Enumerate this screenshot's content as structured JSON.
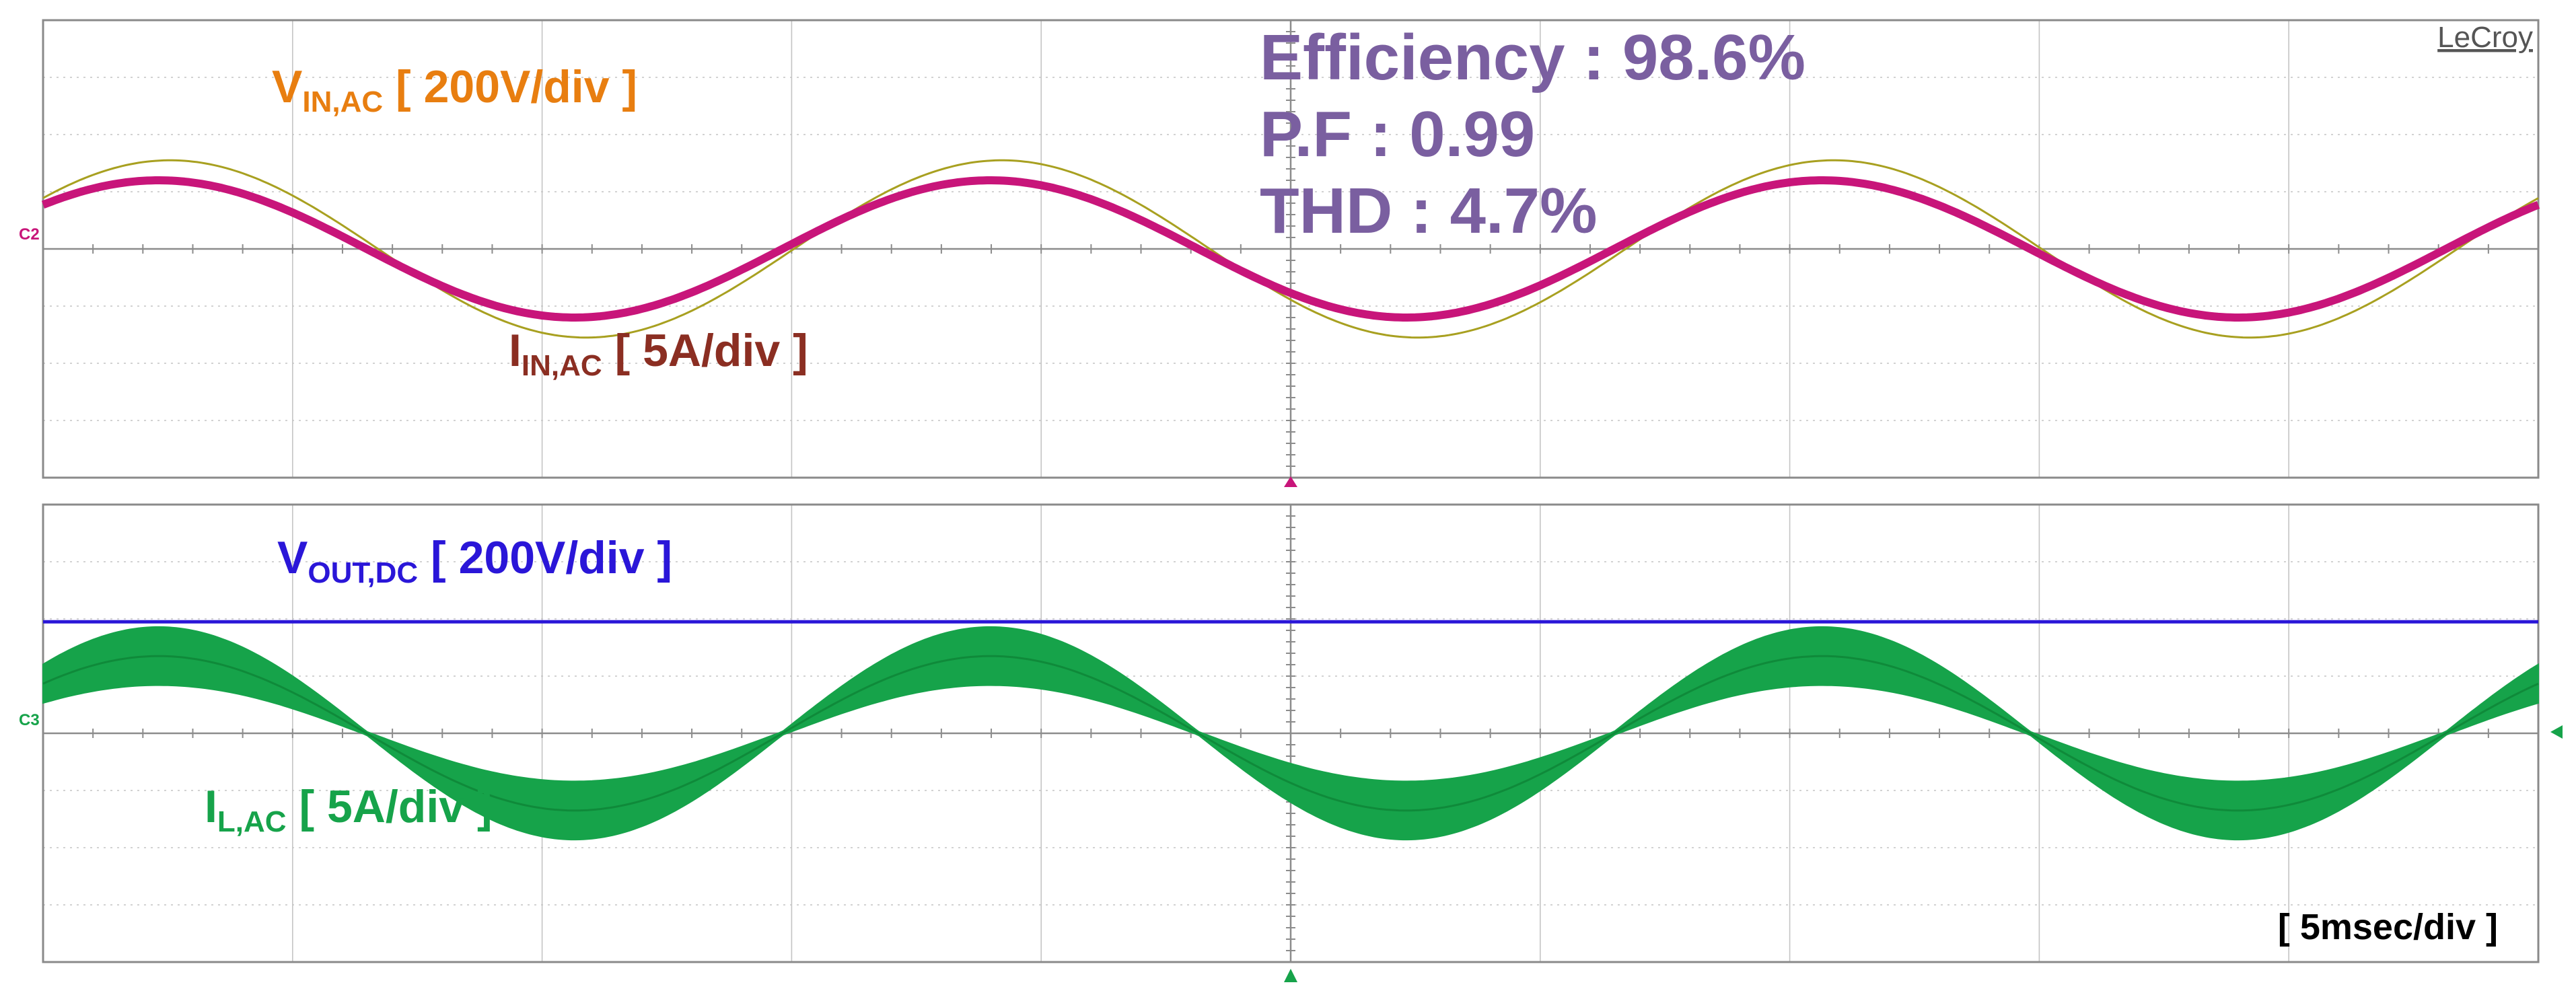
{
  "brand": "LeCroy",
  "colors": {
    "v_in": "#E87E10",
    "i_in": "#8B2E22",
    "i_in_trace": "#C8157A",
    "v_in_trace": "#A8A020",
    "v_out": "#2A16D8",
    "i_l": "#16A34A",
    "metrics": "#7A5FA0",
    "grid": "#9a9a9a",
    "grid_minor": "#c4c4c4",
    "border": "#8a8a8a",
    "marker_c2": "#C8157A",
    "marker_c3": "#16A34A"
  },
  "metrics": {
    "efficiency": "Efficiency : 98.6%",
    "pf": "P.F : 0.99",
    "thd": "THD : 4.7%"
  },
  "channel_markers": {
    "top": "C2",
    "bottom": "C3"
  },
  "labels": {
    "v_in_main": "V",
    "v_in_sub": "IN,AC",
    "v_in_scale": " [ 200V/div ]",
    "i_in_main": "I",
    "i_in_sub": "IN,AC",
    "i_in_scale": " [ 5A/div ]",
    "v_out_main": "V",
    "v_out_sub": "OUT,DC",
    "v_out_scale": " [ 200V/div ]",
    "i_l_main": "I",
    "i_l_sub": "L,AC",
    "i_l_scale": " [ 5A/div ]",
    "timebase": "[ 5msec/div ]"
  },
  "chart_data": [
    {
      "type": "line",
      "panel": "top",
      "x_unit": "ms",
      "xlim": [
        0,
        50
      ],
      "y_unit": "div",
      "ylim": [
        -4,
        4
      ],
      "grid": true,
      "series": [
        {
          "name": "V_IN,AC",
          "scale": "200V/div",
          "waveform": "sine",
          "frequency_hz": 60,
          "amplitude_div": 1.55,
          "offset_div": 0,
          "phase_deg": 35
        },
        {
          "name": "I_IN,AC",
          "scale": "5A/div",
          "waveform": "sine",
          "frequency_hz": 60,
          "amplitude_div": 1.2,
          "offset_div": 0,
          "phase_deg": 40
        }
      ]
    },
    {
      "type": "line",
      "panel": "bottom",
      "x_unit": "ms",
      "xlim": [
        0,
        50
      ],
      "y_unit": "div",
      "ylim": [
        -4,
        4
      ],
      "grid": true,
      "series": [
        {
          "name": "V_OUT,DC",
          "scale": "200V/div",
          "waveform": "dc",
          "level_div": 1.95
        },
        {
          "name": "I_L,AC",
          "scale": "5A/div",
          "waveform": "sine_with_ripple",
          "frequency_hz": 60,
          "amplitude_div": 1.35,
          "offset_div": 0,
          "phase_deg": 40,
          "ripple_div_peak": 0.48
        }
      ]
    }
  ]
}
